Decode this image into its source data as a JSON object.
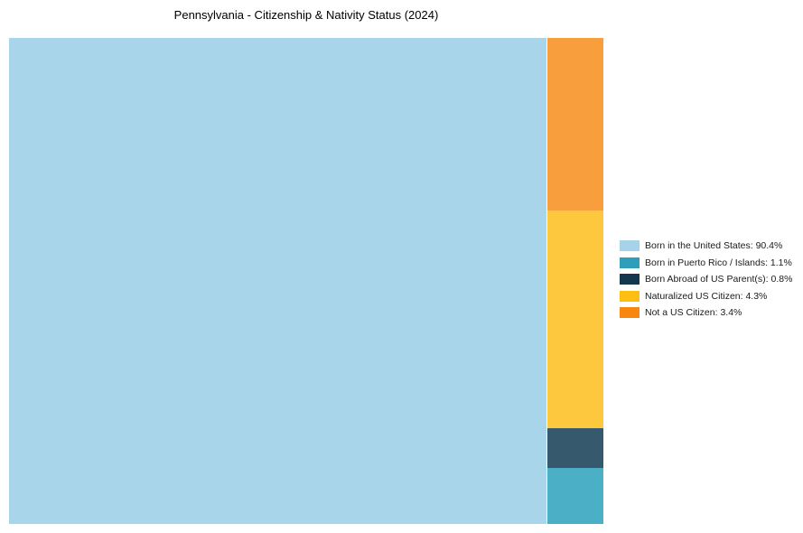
{
  "chart_data": {
    "type": "treemap",
    "title": "Pennsylvania - Citizenship & Nativity Status (2024)",
    "unit": "%",
    "legend_position": "right",
    "grid": false,
    "plot_background": "#ffffff",
    "items": [
      {
        "label": "Born in the United States",
        "value": 90.4,
        "legend_text": "Born in the United States: 90.4%",
        "color": "#A6D3EA",
        "fill": "#A9D5EB"
      },
      {
        "label": "Born in Puerto Rico / Islands",
        "value": 1.1,
        "legend_text": "Born in Puerto Rico / Islands: 1.1%",
        "color": "#2E9EBA",
        "fill": "#4BB0C5"
      },
      {
        "label": "Born Abroad of US Parent(s)",
        "value": 0.8,
        "legend_text": "Born Abroad of US Parent(s): 0.8%",
        "color": "#12374E",
        "fill": "#36596E"
      },
      {
        "label": "Naturalized US Citizen",
        "value": 4.3,
        "legend_text": "Naturalized US Citizen: 4.3%",
        "color": "#FEBE12",
        "fill": "#FDC73E"
      },
      {
        "label": "Not a US Citizen",
        "value": 3.4,
        "legend_text": "Not a US Citizen: 3.4%",
        "color": "#F7870F",
        "fill": "#F99E3C"
      }
    ]
  }
}
